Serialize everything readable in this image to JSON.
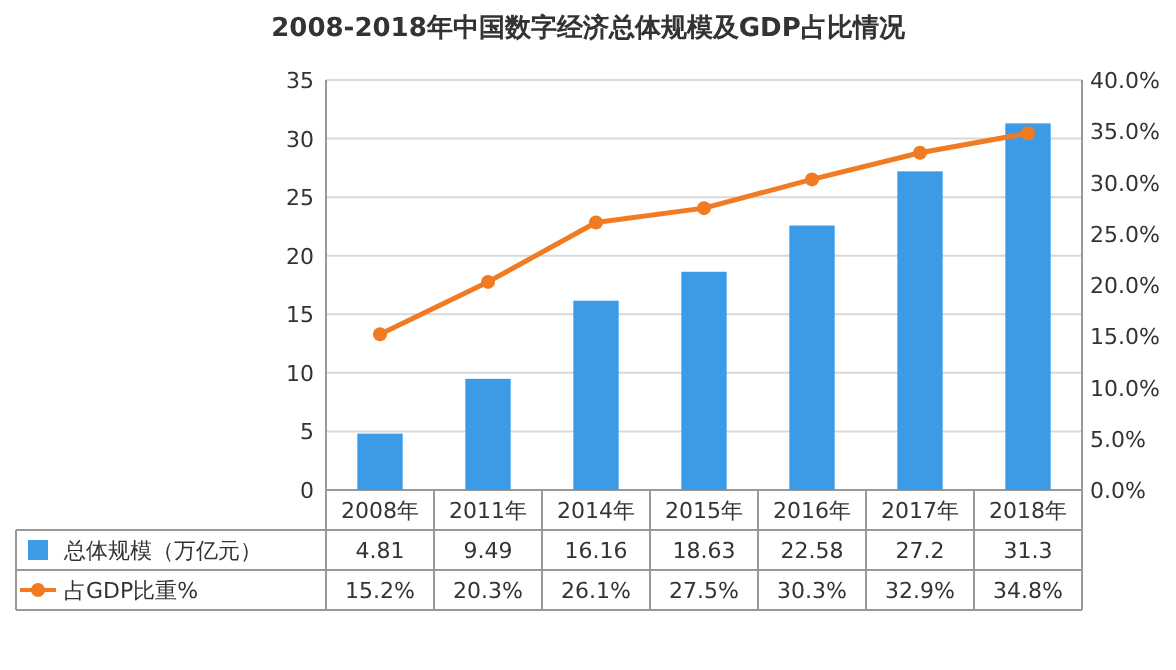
{
  "chart_data": {
    "type": "bar",
    "title": "2008-2018年中国数字经济总体规模及GDP占比情况",
    "categories": [
      "2008年",
      "2011年",
      "2014年",
      "2015年",
      "2016年",
      "2017年",
      "2018年"
    ],
    "series": [
      {
        "name": "总体规模（万亿元）",
        "color": "#3c9be6",
        "values": [
          4.81,
          9.49,
          16.16,
          18.63,
          22.58,
          27.2,
          31.3
        ],
        "value_labels": [
          "4.81",
          "9.49",
          "16.16",
          "18.63",
          "22.58",
          "27.2",
          "31.3"
        ]
      },
      {
        "name": "占GDP比重%",
        "type": "line",
        "axis": "y2",
        "color": "#f07b22",
        "marker": "circle",
        "values": [
          15.2,
          20.3,
          26.1,
          27.5,
          30.3,
          32.9,
          34.8
        ],
        "value_labels": [
          "15.2%",
          "20.3%",
          "26.1%",
          "27.5%",
          "30.3%",
          "32.9%",
          "34.8%"
        ]
      }
    ],
    "ylim": [
      0,
      35
    ],
    "yticks": [
      0,
      5,
      10,
      15,
      20,
      25,
      30,
      35
    ],
    "y2lim": [
      0,
      40
    ],
    "y2ticks": [
      {
        "value": 0,
        "label": "0.0%"
      },
      {
        "value": 5,
        "label": "5.0%"
      },
      {
        "value": 10,
        "label": "10.0%"
      },
      {
        "value": 15,
        "label": "15.0%"
      },
      {
        "value": 20,
        "label": "20.0%"
      },
      {
        "value": 25,
        "label": "25.0%"
      },
      {
        "value": 30,
        "label": "30.0%"
      },
      {
        "value": 35,
        "label": "35.0%"
      },
      {
        "value": 40,
        "label": "40.0%"
      }
    ],
    "grid": "y",
    "legend": "bottom",
    "data_labels": true
  }
}
